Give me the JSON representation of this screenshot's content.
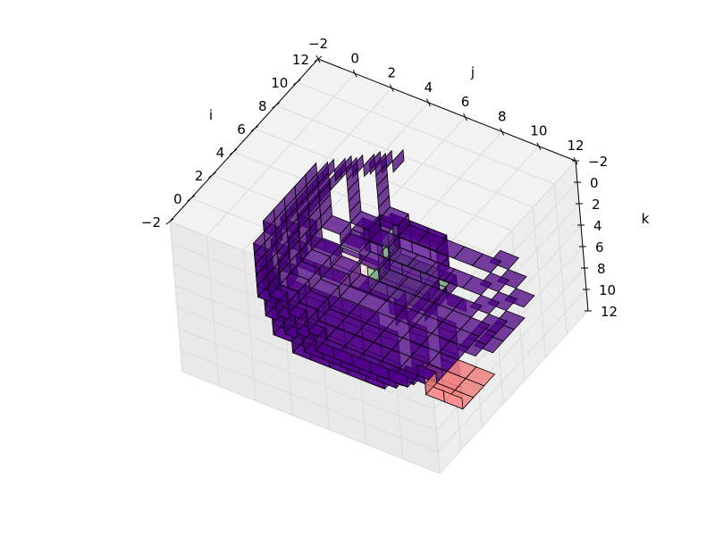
{
  "chart_data": {
    "type": "voxels",
    "title": "",
    "axes": {
      "i": {
        "label": "i",
        "range": [
          -2,
          12
        ],
        "ticks": [
          "12",
          "10",
          "8",
          "6",
          "4",
          "2",
          "0",
          "−2"
        ],
        "tick_values": [
          12,
          10,
          8,
          6,
          4,
          2,
          0,
          -2
        ]
      },
      "j": {
        "label": "j",
        "range": [
          -2,
          12
        ],
        "ticks": [
          "−2",
          "0",
          "2",
          "4",
          "6",
          "8",
          "10",
          "12"
        ],
        "tick_values": [
          -2,
          0,
          2,
          4,
          6,
          8,
          10,
          12
        ]
      },
      "k": {
        "label": "k",
        "range": [
          -2,
          12
        ],
        "ticks": [
          "12",
          "10",
          "8",
          "6",
          "4",
          "2",
          "0",
          "−2"
        ],
        "tick_values": [
          12,
          10,
          8,
          6,
          4,
          2,
          0,
          -2
        ]
      }
    },
    "grid": true,
    "voxel_groups": [
      {
        "name": "",
        "color": "#4b0082",
        "alpha": 0.75,
        "region": "ring",
        "center": [
          5,
          5,
          5
        ],
        "outer_radius": 6.2,
        "inner_radius": 2.5
      },
      {
        "name": "",
        "color": "#ffe4e1",
        "alpha": 0.9,
        "region": "box",
        "i": [
          2,
          4
        ],
        "j": [
          2,
          4
        ],
        "k": [
          2,
          4
        ]
      },
      {
        "name": "",
        "color": "#8fbc8f",
        "alpha": 0.9,
        "region": "box",
        "i": [
          4,
          6
        ],
        "j": [
          5,
          7
        ],
        "k": [
          2,
          5
        ]
      },
      {
        "name": "",
        "color": "#f08080",
        "alpha": 0.85,
        "region": "box",
        "i": [
          2,
          4
        ],
        "j": [
          9,
          11
        ],
        "k": [
          8,
          11
        ]
      }
    ]
  }
}
